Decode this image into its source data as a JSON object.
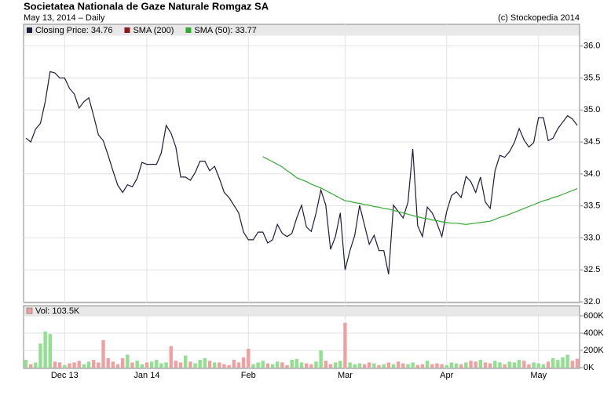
{
  "chart_data": {
    "type": "line",
    "title": "Societatea Nationala de Gaze Naturale Romgaz SA",
    "subtitle": "May 13, 2014 – Daily",
    "source": "(c) Stockopedia 2014",
    "categories": [
      null,
      null,
      null,
      null,
      null,
      null,
      null,
      null,
      "Dec 13",
      null,
      null,
      null,
      null,
      null,
      null,
      null,
      null,
      null,
      null,
      null,
      null,
      null,
      null,
      null,
      null,
      "Jan 14",
      null,
      null,
      null,
      null,
      null,
      null,
      null,
      null,
      null,
      null,
      null,
      null,
      null,
      null,
      null,
      null,
      null,
      null,
      null,
      null,
      "Feb",
      null,
      null,
      null,
      null,
      null,
      null,
      null,
      null,
      null,
      null,
      null,
      null,
      null,
      null,
      null,
      null,
      null,
      null,
      null,
      "Mar",
      null,
      null,
      null,
      null,
      null,
      null,
      null,
      null,
      null,
      null,
      null,
      null,
      null,
      null,
      null,
      null,
      null,
      null,
      null,
      null,
      "Apr",
      null,
      null,
      null,
      null,
      null,
      null,
      null,
      null,
      null,
      null,
      null,
      null,
      null,
      null,
      null,
      null,
      null,
      null,
      "May",
      null,
      null,
      null,
      null,
      null,
      null,
      null,
      null
    ],
    "ylim": [
      32,
      36.34
    ],
    "yticks": [
      {
        "value": 32,
        "label": "32.0"
      },
      32.5,
      {
        "value": 33,
        "label": "33.0"
      },
      33.5,
      {
        "value": 34,
        "label": "34.0"
      },
      34.5,
      {
        "value": 35,
        "label": "35.0"
      },
      35.5,
      {
        "value": 36,
        "label": "36.0"
      }
    ],
    "y2lim": [
      0,
      718000
    ],
    "y2ticks": [
      {
        "value": 0,
        "label": "0K"
      },
      {
        "value": 200000,
        "label": "200K"
      },
      {
        "value": 400000,
        "label": "400K"
      },
      {
        "value": 600000,
        "label": "600K"
      }
    ],
    "grid": true,
    "series": [
      {
        "name": "Closing Price: 34.76",
        "color": "#1c1c3c",
        "values": [
          34.56,
          34.5,
          34.7,
          34.79,
          35.13,
          35.6,
          35.58,
          35.5,
          35.5,
          35.34,
          35.25,
          35.03,
          35.13,
          35.19,
          34.91,
          34.61,
          34.52,
          34.29,
          34.05,
          33.82,
          33.71,
          33.83,
          33.8,
          33.93,
          34.18,
          34.15,
          34.15,
          34.15,
          34.33,
          34.76,
          34.64,
          34.42,
          33.95,
          33.95,
          33.9,
          34.02,
          34.2,
          34.2,
          34.05,
          34.12,
          33.93,
          33.71,
          33.63,
          33.51,
          33.39,
          33.09,
          32.97,
          32.97,
          33.09,
          33.09,
          32.92,
          32.97,
          33.21,
          33.07,
          33.02,
          33.07,
          33.31,
          33.51,
          33.17,
          33.1,
          33.39,
          33.75,
          33.51,
          32.82,
          33.02,
          33.39,
          32.5,
          32.8,
          33.04,
          33.51,
          33.2,
          32.9,
          33.04,
          32.8,
          32.8,
          32.43,
          33.51,
          33.41,
          33.31,
          33.56,
          34.39,
          33.19,
          33.02,
          33.48,
          33.39,
          33.23,
          33.02,
          33.41,
          33.66,
          33.72,
          33.63,
          33.96,
          33.88,
          33.71,
          33.95,
          33.56,
          33.46,
          34.05,
          34.29,
          34.26,
          34.35,
          34.49,
          34.71,
          34.53,
          34.42,
          34.49,
          34.88,
          34.88,
          34.52,
          34.56,
          34.71,
          34.81,
          34.91,
          34.86,
          34.76
        ]
      },
      {
        "name": "SMA (200)",
        "color": "#8b1a1a",
        "values": [
          null,
          null,
          null,
          null,
          null,
          null,
          null,
          null,
          null,
          null,
          null,
          null,
          null,
          null,
          null,
          null,
          null,
          null,
          null,
          null,
          null,
          null,
          null,
          null,
          null,
          null,
          null,
          null,
          null,
          null,
          null,
          null,
          null,
          null,
          null,
          null,
          null,
          null,
          null,
          null,
          null,
          null,
          null,
          null,
          null,
          null,
          null,
          null,
          null,
          null,
          null,
          null,
          null,
          null,
          null,
          null,
          null,
          null,
          null,
          null,
          null,
          null,
          null,
          null,
          null,
          null,
          null,
          null,
          null,
          null,
          null,
          null,
          null,
          null,
          null,
          null,
          null,
          null,
          null,
          null,
          null,
          null,
          null,
          null,
          null,
          null,
          null,
          null,
          null,
          null,
          null,
          null,
          null,
          null,
          null,
          null,
          null,
          null,
          null,
          null,
          null,
          null,
          null,
          null,
          null,
          null,
          null,
          null,
          null,
          null,
          null,
          null,
          null,
          null,
          null
        ]
      },
      {
        "name": "SMA (50): 33.77",
        "color": "#33aa33",
        "values": [
          null,
          null,
          null,
          null,
          null,
          null,
          null,
          null,
          null,
          null,
          null,
          null,
          null,
          null,
          null,
          null,
          null,
          null,
          null,
          null,
          null,
          null,
          null,
          null,
          null,
          null,
          null,
          null,
          null,
          null,
          null,
          null,
          null,
          null,
          null,
          null,
          null,
          null,
          null,
          null,
          null,
          null,
          null,
          null,
          null,
          null,
          null,
          null,
          null,
          34.27,
          34.23,
          34.19,
          34.15,
          34.11,
          34.05,
          34.0,
          33.94,
          33.91,
          33.88,
          33.84,
          33.81,
          33.78,
          33.74,
          33.7,
          33.66,
          33.62,
          33.58,
          33.57,
          33.55,
          33.54,
          33.52,
          33.51,
          33.49,
          33.48,
          33.46,
          33.45,
          33.43,
          33.41,
          33.39,
          33.37,
          33.35,
          33.33,
          33.31,
          33.3,
          33.28,
          33.27,
          33.25,
          33.24,
          33.23,
          33.23,
          33.22,
          33.21,
          33.22,
          33.23,
          33.24,
          33.25,
          33.26,
          33.29,
          33.32,
          33.34,
          33.37,
          33.4,
          33.43,
          33.46,
          33.49,
          33.52,
          33.55,
          33.58,
          33.6,
          33.63,
          33.65,
          33.68,
          33.71,
          33.74,
          33.77
        ]
      },
      {
        "name": "Vol: 103.5K",
        "type": "bar",
        "axis": "y2",
        "color": "#f0a0a0",
        "up_color": "#90e090",
        "down_color": "#f0a0a0",
        "values": [
          90000,
          40000,
          60000,
          280000,
          420000,
          390000,
          70000,
          60000,
          30000,
          50000,
          60000,
          80000,
          40000,
          70000,
          90000,
          60000,
          320000,
          110000,
          70000,
          40000,
          110000,
          150000,
          60000,
          80000,
          40000,
          60000,
          70000,
          90000,
          50000,
          60000,
          250000,
          80000,
          60000,
          140000,
          70000,
          50000,
          90000,
          110000,
          80000,
          60000,
          60000,
          40000,
          30000,
          90000,
          60000,
          120000,
          220000,
          40000,
          60000,
          80000,
          50000,
          40000,
          70000,
          60000,
          30000,
          90000,
          100000,
          60000,
          50000,
          40000,
          70000,
          200000,
          80000,
          40000,
          60000,
          80000,
          520000,
          60000,
          40000,
          50000,
          40000,
          60000,
          50000,
          30000,
          40000,
          60000,
          40000,
          70000,
          50000,
          40000,
          60000,
          30000,
          40000,
          80000,
          40000,
          50000,
          40000,
          30000,
          60000,
          50000,
          40000,
          60000,
          80000,
          70000,
          90000,
          60000,
          50000,
          80000,
          60000,
          40000,
          70000,
          60000,
          90000,
          80000,
          40000,
          60000,
          50000,
          40000,
          70000,
          110000,
          90000,
          120000,
          150000,
          80000,
          103500
        ]
      }
    ]
  }
}
